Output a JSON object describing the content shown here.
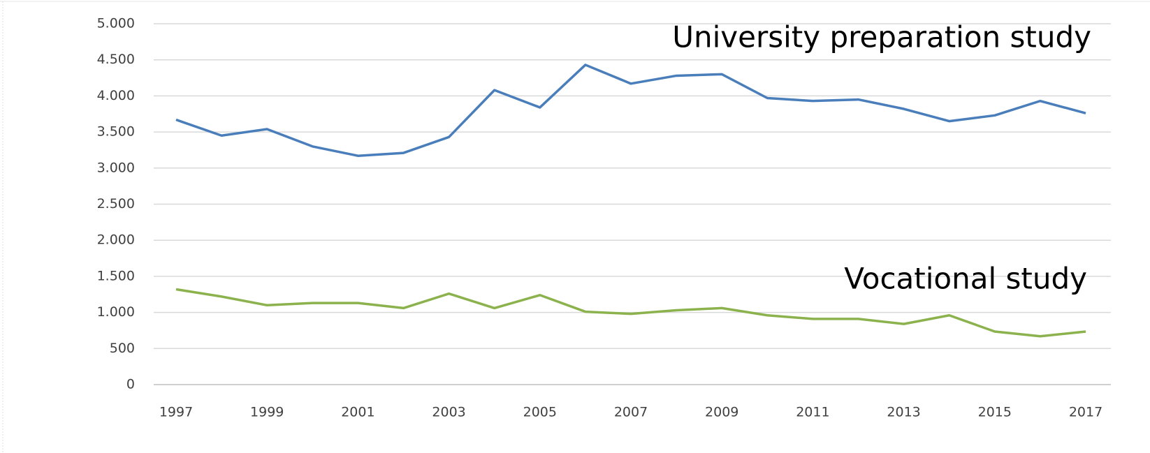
{
  "chart_data": {
    "type": "line",
    "x": [
      1997,
      1998,
      1999,
      2000,
      2001,
      2002,
      2003,
      2004,
      2005,
      2006,
      2007,
      2008,
      2009,
      2010,
      2011,
      2012,
      2013,
      2014,
      2015,
      2016,
      2017
    ],
    "series": [
      {
        "name": "University preparation study",
        "color": "#4a7ebb",
        "values": [
          3670,
          3450,
          3540,
          3300,
          3170,
          3210,
          3430,
          4080,
          3840,
          4430,
          4170,
          4280,
          4300,
          3970,
          3930,
          3950,
          3820,
          3650,
          3730,
          3930,
          3760
        ]
      },
      {
        "name": "Vocational study",
        "color": "#8cb24e",
        "values": [
          1320,
          1220,
          1100,
          1130,
          1130,
          1060,
          1260,
          1060,
          1240,
          1010,
          980,
          1030,
          1060,
          960,
          910,
          910,
          840,
          960,
          735,
          670,
          735
        ]
      }
    ],
    "xlim": [
      1997,
      2017
    ],
    "xticks": [
      1997,
      1999,
      2001,
      2003,
      2005,
      2007,
      2009,
      2011,
      2013,
      2015,
      2017
    ],
    "ylim": [
      0,
      5000
    ],
    "yticks": [
      0,
      500,
      {
        "value": 1000,
        "label": "1.000"
      },
      {
        "value": 1500,
        "label": "1.500"
      },
      {
        "value": 2000,
        "label": "2.000"
      },
      {
        "value": 2500,
        "label": "2.500"
      },
      {
        "value": 3000,
        "label": "3.000"
      },
      {
        "value": 3500,
        "label": "3.500"
      },
      {
        "value": 4000,
        "label": "4.000"
      },
      {
        "value": 4500,
        "label": "4.500"
      },
      {
        "value": 5000,
        "label": "5.000"
      }
    ],
    "grid": true
  }
}
